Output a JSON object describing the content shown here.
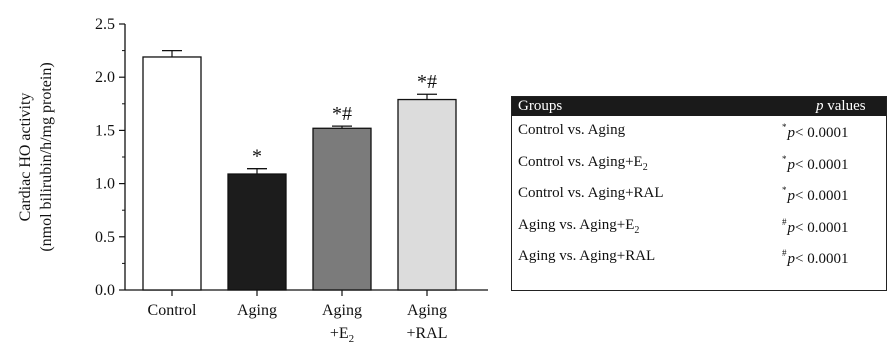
{
  "chart_data": {
    "type": "bar",
    "ylabel": "Cardiac HO activity",
    "ylabel2": "(nmol bilirubin/h/mg protein)",
    "ylim": [
      0.0,
      2.5
    ],
    "yticks": [
      "0.0",
      "0.5",
      "1.0",
      "1.5",
      "2.0",
      "2.5"
    ],
    "categories": [
      {
        "line1": "Control",
        "line2": "",
        "sub": "",
        "line2_tail": ""
      },
      {
        "line1": "Aging",
        "line2": "",
        "sub": "",
        "line2_tail": ""
      },
      {
        "line1": "Aging",
        "line2": "+E",
        "sub": "2",
        "line2_tail": ""
      },
      {
        "line1": "Aging",
        "line2": "+RAL",
        "sub": "",
        "line2_tail": ""
      }
    ],
    "values": [
      2.19,
      1.09,
      1.52,
      1.79
    ],
    "errors": [
      0.06,
      0.05,
      0.02,
      0.05
    ],
    "colors": [
      "#ffffff",
      "#1c1c1c",
      "#7b7b7b",
      "#dcdcdc"
    ],
    "annotations": [
      "",
      "*",
      "*#",
      "*#"
    ]
  },
  "table": {
    "header": {
      "groups": "Groups",
      "p": "p",
      "values": " values"
    },
    "rows": [
      {
        "pre": "Control vs. Aging",
        "sub": "",
        "post": "",
        "mark": "*",
        "p": "p",
        "val": "< 0.0001"
      },
      {
        "pre": "Control vs. Aging+E",
        "sub": "2",
        "post": "",
        "mark": "*",
        "p": "p",
        "val": "< 0.0001"
      },
      {
        "pre": "Control vs. Aging+RAL",
        "sub": "",
        "post": "",
        "mark": "*",
        "p": "p",
        "val": "< 0.0001"
      },
      {
        "pre": "Aging vs. Aging+E",
        "sub": "2",
        "post": "",
        "mark": "#",
        "p": "p",
        "val": "< 0.0001"
      },
      {
        "pre": "Aging vs. Aging+RAL",
        "sub": "",
        "post": "",
        "mark": "#",
        "p": "p",
        "val": "< 0.0001"
      }
    ]
  }
}
